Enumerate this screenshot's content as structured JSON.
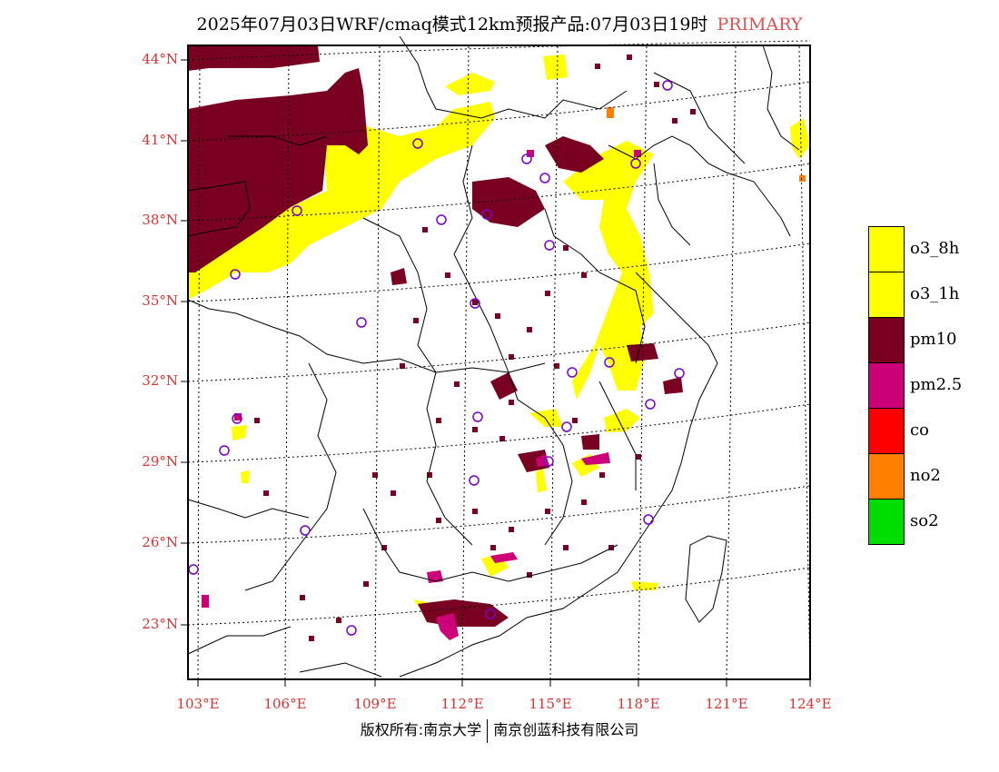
{
  "header": {
    "title": "2025年07月03日WRF/cmaq模式12km预报产品:07月03日19时",
    "tag": "PRIMARY",
    "tag_color": "#e05050"
  },
  "map": {
    "lat_labels": [
      "44°N",
      "41°N",
      "38°N",
      "35°N",
      "32°N",
      "29°N",
      "26°N",
      "23°N"
    ],
    "lon_labels": [
      "103°E",
      "106°E",
      "109°E",
      "112°E",
      "115°E",
      "118°E",
      "121°E",
      "124°E"
    ],
    "axis_label_color": "#e03030",
    "marker_color": "#7a00cc"
  },
  "legend": [
    {
      "label": "o3_8h",
      "color": "#ffff00"
    },
    {
      "label": "o3_1h",
      "color": "#ffff00"
    },
    {
      "label": "pm10",
      "color": "#7a0022"
    },
    {
      "label": "pm2.5",
      "color": "#cc0077"
    },
    {
      "label": "co",
      "color": "#ff0000"
    },
    {
      "label": "no2",
      "color": "#ff7f00"
    },
    {
      "label": "so2",
      "color": "#00dd00"
    }
  ],
  "footer": {
    "left": "版权所有:南京大学",
    "right": "南京创蓝科技有限公司"
  }
}
